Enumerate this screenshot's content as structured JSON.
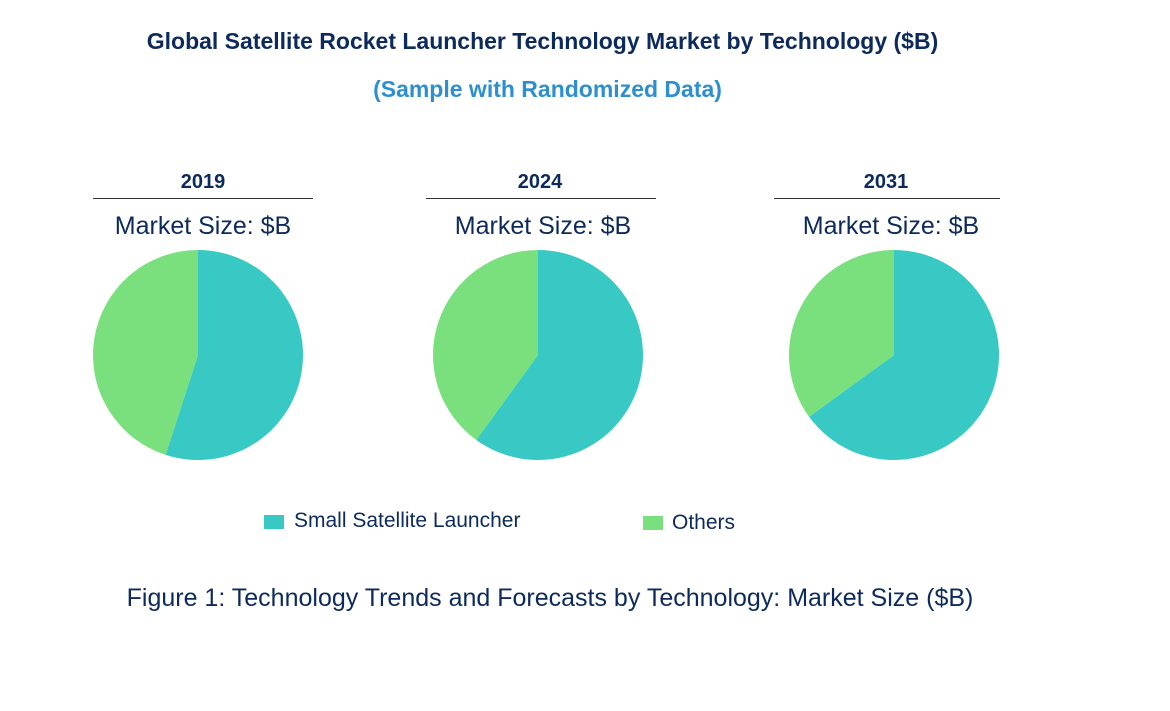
{
  "chart_data": {
    "type": "pie",
    "title": "Global Satellite Rocket Launcher Technology Market by Technology ($B)",
    "subtitle": "(Sample with Randomized Data)",
    "caption": "Figure 1: Technology Trends and Forecasts by Technology: Market Size ($B)",
    "legend_placement": "bottom",
    "legend": [
      "Small Satellite Launcher",
      "Others"
    ],
    "colors": [
      "#38C9C4",
      "#7AE07E"
    ],
    "pies": [
      {
        "year": "2019",
        "label": "Market Size: $B",
        "values": [
          55,
          45
        ]
      },
      {
        "year": "2024",
        "label": "Market Size: $B",
        "values": [
          60,
          40
        ]
      },
      {
        "year": "2031",
        "label": "Market Size: $B",
        "values": [
          65,
          35
        ]
      }
    ]
  }
}
